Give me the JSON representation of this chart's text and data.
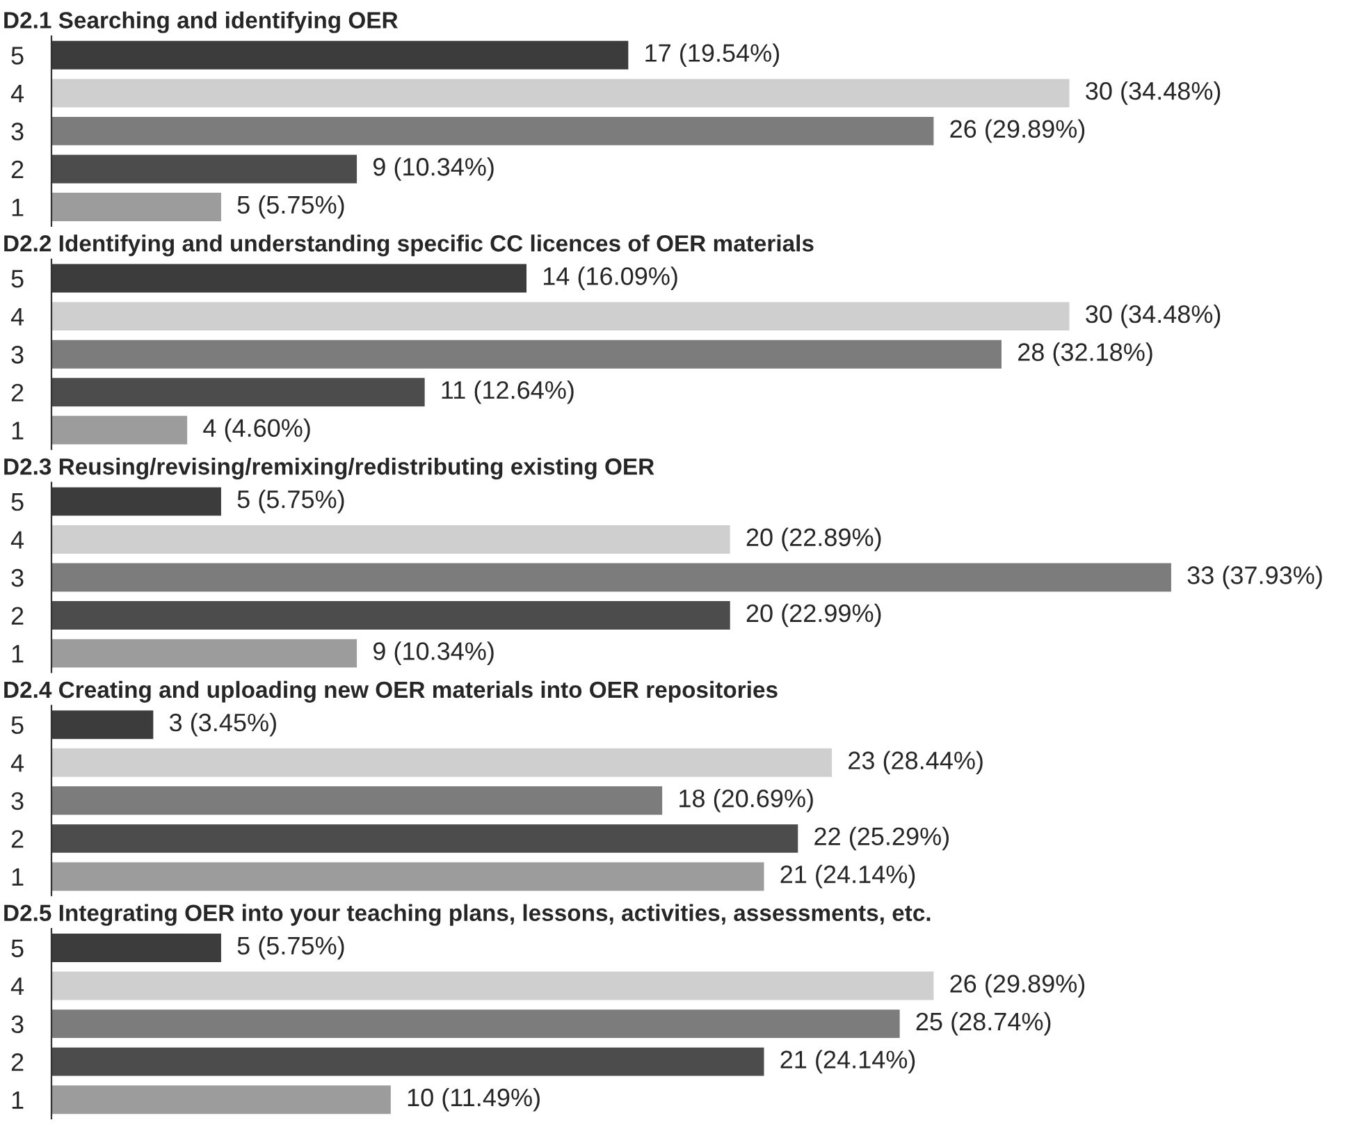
{
  "chart_data": [
    {
      "type": "bar",
      "orientation": "horizontal",
      "title": "D2.1 Searching and identifying OER",
      "categories": [
        "5",
        "4",
        "3",
        "2",
        "1"
      ],
      "values": [
        17,
        30,
        26,
        9,
        5
      ],
      "colors": [
        "#3c3c3c",
        "#cfcfcf",
        "#7c7c7c",
        "#4c4c4c",
        "#9c9c9c"
      ],
      "value_labels": [
        "17 (19.54%)",
        "30 (34.48%)",
        "26 (29.89%)",
        "9 (10.34%)",
        "5 (5.75%)"
      ],
      "tick_labels": "y"
    },
    {
      "type": "bar",
      "orientation": "horizontal",
      "title": "D2.2 Identifying and understanding specific CC licences of OER materials",
      "categories": [
        "5",
        "4",
        "3",
        "2",
        "1"
      ],
      "values": [
        14,
        30,
        28,
        11,
        4
      ],
      "colors": [
        "#3c3c3c",
        "#cfcfcf",
        "#7c7c7c",
        "#4c4c4c",
        "#9c9c9c"
      ],
      "value_labels": [
        "14 (16.09%)",
        "30 (34.48%)",
        "28 (32.18%)",
        "11 (12.64%)",
        "4 (4.60%)"
      ],
      "tick_labels": "y"
    },
    {
      "type": "bar",
      "orientation": "horizontal",
      "title": "D2.3 Reusing/revising/remixing/redistributing existing OER",
      "categories": [
        "5",
        "4",
        "3",
        "2",
        "1"
      ],
      "values": [
        5,
        20,
        33,
        20,
        9
      ],
      "colors": [
        "#3c3c3c",
        "#cfcfcf",
        "#7c7c7c",
        "#4c4c4c",
        "#9c9c9c"
      ],
      "value_labels": [
        "5 (5.75%)",
        "20 (22.89%)",
        "33 (37.93%)",
        "20 (22.99%)",
        "9 (10.34%)"
      ],
      "tick_labels": "y"
    },
    {
      "type": "bar",
      "orientation": "horizontal",
      "title": "D2.4 Creating and uploading new OER materials into OER repositories",
      "categories": [
        "5",
        "4",
        "3",
        "2",
        "1"
      ],
      "values": [
        3,
        23,
        18,
        22,
        21
      ],
      "colors": [
        "#3c3c3c",
        "#cfcfcf",
        "#7c7c7c",
        "#4c4c4c",
        "#9c9c9c"
      ],
      "value_labels": [
        "3 (3.45%)",
        "23 (28.44%)",
        "18 (20.69%)",
        "22 (25.29%)",
        "21 (24.14%)"
      ],
      "tick_labels": "y"
    },
    {
      "type": "bar",
      "orientation": "horizontal",
      "title": "D2.5 Integrating OER into your teaching plans, lessons, activities, assessments, etc.",
      "categories": [
        "5",
        "4",
        "3",
        "2",
        "1"
      ],
      "values": [
        5,
        26,
        25,
        21,
        10
      ],
      "colors": [
        "#3c3c3c",
        "#cfcfcf",
        "#7c7c7c",
        "#4c4c4c",
        "#9c9c9c"
      ],
      "value_labels": [
        "5 (5.75%)",
        "26 (29.89%)",
        "25 (28.74%)",
        "21 (24.14%)",
        "10 (11.49%)"
      ],
      "tick_labels": "y"
    }
  ]
}
